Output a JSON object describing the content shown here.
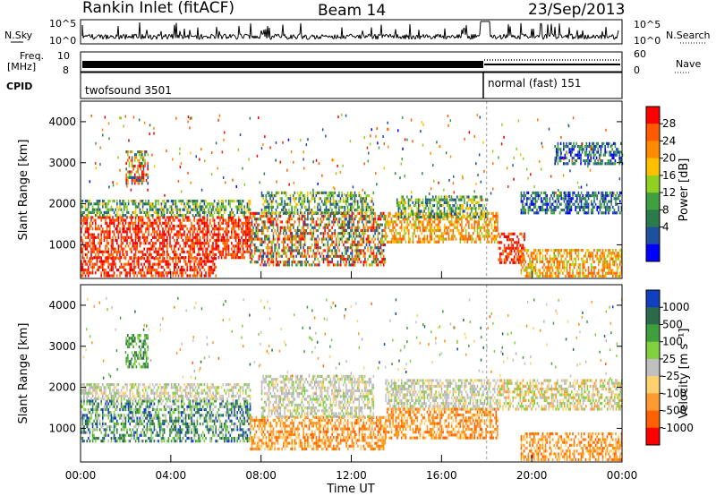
{
  "header": {
    "station": "Rankin Inlet (fitACF)",
    "beam": "Beam 14",
    "date": "23/Sep/2013"
  },
  "strip_labels": {
    "nsky": "N.Sky",
    "nsearch": "N.Search",
    "freq_line1": "Freq.",
    "freq_line2": "[MHz]",
    "nave": "Nave",
    "cpid": "CPID",
    "noise_tick_top": "10^5",
    "noise_tick_bottom": "10^0",
    "noise_tick_top_right": "10^5",
    "noise_tick_bottom_right": "10^0",
    "freq_tick_top": "10",
    "freq_tick_bottom": "8",
    "nave_tick_top": "60",
    "nave_tick_bottom": "0"
  },
  "cpid_segments": [
    {
      "label": "twofsound 3501",
      "start_hour": 0,
      "end_hour": 18
    },
    {
      "label": "normal (fast) 151",
      "start_hour": 18,
      "end_hour": 24
    }
  ],
  "chart_data": [
    {
      "type": "heatmap",
      "panel": "power",
      "xlabel": "",
      "ylabel": "Slant Range [km]",
      "xlim": [
        0,
        24
      ],
      "ylim": [
        180,
        4500
      ],
      "yticks": [
        1000,
        2000,
        3000,
        4000
      ],
      "colorbar": {
        "label": "Power [dB]",
        "ticks": [
          "28",
          "24",
          "20",
          "16",
          "12",
          "8",
          "4"
        ],
        "colors": [
          "#ff0000",
          "#ff5a00",
          "#ff8c00",
          "#ffc000",
          "#90d020",
          "#40a040",
          "#2a7a4a",
          "#1e50a0",
          "#0000ff"
        ]
      },
      "regions": [
        {
          "t0": 0.0,
          "t1": 7.5,
          "r0": 700,
          "r1": 1700,
          "level": "red"
        },
        {
          "t0": 0.0,
          "t1": 7.5,
          "r0": 1700,
          "r1": 2100,
          "level": "green"
        },
        {
          "t0": 0.0,
          "t1": 6.0,
          "r0": 250,
          "r1": 700,
          "level": "red"
        },
        {
          "t0": 2.0,
          "t1": 3.0,
          "r0": 2500,
          "r1": 3300,
          "level": "mixed"
        },
        {
          "t0": 7.5,
          "t1": 13.5,
          "r0": 500,
          "r1": 1800,
          "level": "mixed"
        },
        {
          "t0": 8.0,
          "t1": 13.0,
          "r0": 1800,
          "r1": 2300,
          "level": "green"
        },
        {
          "t0": 13.5,
          "t1": 18.5,
          "r0": 1100,
          "r1": 1800,
          "level": "orange"
        },
        {
          "t0": 14.0,
          "t1": 18.0,
          "r0": 1700,
          "r1": 2200,
          "level": "green"
        },
        {
          "t0": 18.5,
          "t1": 19.7,
          "r0": 600,
          "r1": 1300,
          "level": "red"
        },
        {
          "t0": 19.5,
          "t1": 24.0,
          "r0": 250,
          "r1": 900,
          "level": "orange"
        },
        {
          "t0": 19.5,
          "t1": 24.0,
          "r0": 1800,
          "r1": 2300,
          "level": "blue"
        },
        {
          "t0": 21.0,
          "t1": 24.0,
          "r0": 3000,
          "r1": 3500,
          "level": "blue"
        }
      ]
    },
    {
      "type": "heatmap",
      "panel": "velocity",
      "xlabel": "Time UT",
      "ylabel": "Slant Range [km]",
      "xlim": [
        0,
        24
      ],
      "ylim": [
        180,
        4500
      ],
      "xticks": [
        "00:00",
        "04:00",
        "08:00",
        "12:00",
        "16:00",
        "20:00",
        "00:00"
      ],
      "yticks": [
        1000,
        2000,
        3000,
        4000
      ],
      "colorbar": {
        "label": "Velocity [m s⁻¹]",
        "ticks": [
          "1000",
          "500",
          "100",
          "25",
          "-25",
          "-100",
          "-500",
          "-1000"
        ],
        "colors": [
          "#1040c0",
          "#2a6a4a",
          "#3f9f3f",
          "#80d040",
          "#c0c0c0",
          "#ffd070",
          "#ff9a30",
          "#ff6000",
          "#ff0000"
        ]
      },
      "regions": [
        {
          "t0": 0.0,
          "t1": 7.5,
          "r0": 700,
          "r1": 1700,
          "level": "green-blue"
        },
        {
          "t0": 0.0,
          "t1": 7.5,
          "r0": 1700,
          "r1": 2100,
          "level": "grey"
        },
        {
          "t0": 2.0,
          "t1": 3.0,
          "r0": 2500,
          "r1": 3300,
          "level": "green"
        },
        {
          "t0": 7.5,
          "t1": 13.5,
          "r0": 500,
          "r1": 1300,
          "level": "orange"
        },
        {
          "t0": 8.0,
          "t1": 13.0,
          "r0": 1300,
          "r1": 2300,
          "level": "grey"
        },
        {
          "t0": 13.5,
          "t1": 18.5,
          "r0": 1500,
          "r1": 2200,
          "level": "grey"
        },
        {
          "t0": 13.5,
          "t1": 18.5,
          "r0": 800,
          "r1": 1500,
          "level": "orange"
        },
        {
          "t0": 18.5,
          "t1": 24.0,
          "r0": 1500,
          "r1": 2200,
          "level": "grey-orange"
        },
        {
          "t0": 19.5,
          "t1": 24.0,
          "r0": 250,
          "r1": 900,
          "level": "orange"
        }
      ]
    }
  ]
}
